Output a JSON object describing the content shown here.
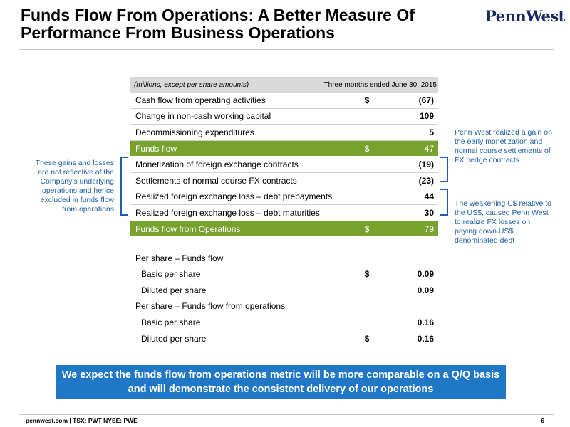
{
  "header": {
    "title": "Funds Flow From Operations: A Better Measure Of Performance From Business Operations",
    "logo_text": "PennWest"
  },
  "table": {
    "header_left": "(millions, except per share amounts)",
    "header_right": "Three months ended June 30, 2015",
    "rows": [
      {
        "label": "Cash flow from operating activities",
        "dollar": "$",
        "value": "(67)"
      },
      {
        "label": "Change in non-cash working capital",
        "dollar": "",
        "value": "109"
      },
      {
        "label": "Decommissioning expenditures",
        "dollar": "",
        "value": "5"
      },
      {
        "label": "Funds flow",
        "dollar": "$",
        "value": "47"
      },
      {
        "label": "Monetization of foreign exchange contracts",
        "dollar": "",
        "value": "(19)"
      },
      {
        "label": "Settlements of normal course FX contracts",
        "dollar": "",
        "value": "(23)"
      },
      {
        "label": "Realized foreign exchange loss – debt prepayments",
        "dollar": "",
        "value": "44"
      },
      {
        "label": "Realized foreign exchange loss – debt maturities",
        "dollar": "",
        "value": "30"
      },
      {
        "label": "Funds flow from Operations",
        "dollar": "$",
        "value": "79"
      }
    ],
    "per_share": [
      {
        "label": "Per share – Funds flow",
        "dollar": "",
        "value": ""
      },
      {
        "label": "Basic per share",
        "dollar": "$",
        "value": "0.09"
      },
      {
        "label": "Diluted per share",
        "dollar": "",
        "value": "0.09"
      },
      {
        "label": "Per share – Funds flow from operations",
        "dollar": "",
        "value": ""
      },
      {
        "label": "Basic per share",
        "dollar": "",
        "value": "0.16"
      },
      {
        "label": "Diluted per share",
        "dollar": "$",
        "value": "0.16"
      }
    ]
  },
  "notes": {
    "left": "These gains and losses are not reflective of the Company's underlying operations and hence excluded in funds flow from operations",
    "right_top": "Penn West realized a gain on the early monetization and normal course settlements of FX hedge contracts",
    "right_bottom": "The weakening C$ relative to the US$, caused Penn West to realize FX losses on paying down US$ denominated debt"
  },
  "banner": "We expect the funds flow from operations metric will be more comparable on a Q/Q basis and will demonstrate the consistent delivery of our operations",
  "footer": {
    "text": "pennwest.com | TSX: PWT  NYSE: PWE",
    "page": "6"
  },
  "colors": {
    "green": "#77a22d",
    "blue_note": "#1f5fa5",
    "banner": "#1f77c5"
  }
}
